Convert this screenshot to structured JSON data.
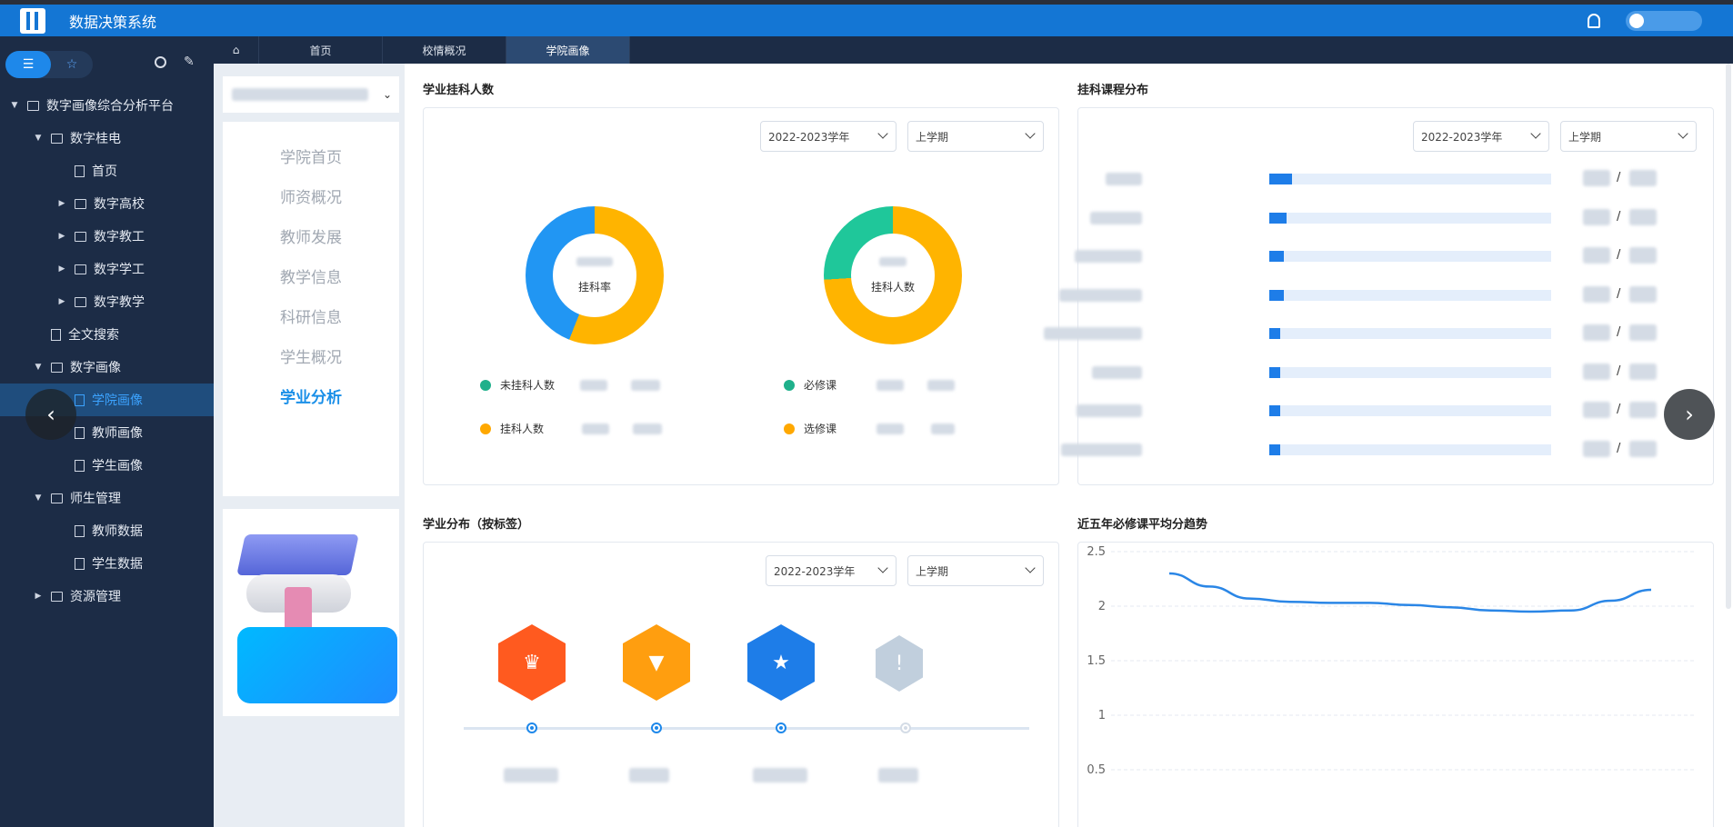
{
  "app": {
    "title": "数据决策系统"
  },
  "sidebar": {
    "items": [
      {
        "label": "数字画像综合分析平台",
        "level": 0,
        "arrow": "▼",
        "type": "folder"
      },
      {
        "label": "数字桂电",
        "level": 1,
        "arrow": "▼",
        "type": "folder"
      },
      {
        "label": "首页",
        "level": 2,
        "arrow": "",
        "type": "doc"
      },
      {
        "label": "数字高校",
        "level": 2,
        "arrow": "▶",
        "type": "folder"
      },
      {
        "label": "数字教工",
        "level": 2,
        "arrow": "▶",
        "type": "folder"
      },
      {
        "label": "数字学工",
        "level": 2,
        "arrow": "▶",
        "type": "folder"
      },
      {
        "label": "数字教学",
        "level": 2,
        "arrow": "▶",
        "type": "folder"
      },
      {
        "label": "全文搜索",
        "level": 1,
        "arrow": "",
        "type": "doc"
      },
      {
        "label": "数字画像",
        "level": 1,
        "arrow": "▼",
        "type": "folder"
      },
      {
        "label": "学院画像",
        "level": 2,
        "arrow": "",
        "type": "doc",
        "active": true
      },
      {
        "label": "教师画像",
        "level": 2,
        "arrow": "",
        "type": "doc"
      },
      {
        "label": "学生画像",
        "level": 2,
        "arrow": "",
        "type": "doc"
      },
      {
        "label": "师生管理",
        "level": 1,
        "arrow": "▼",
        "type": "folder"
      },
      {
        "label": "教师数据",
        "level": 2,
        "arrow": "",
        "type": "doc"
      },
      {
        "label": "学生数据",
        "level": 2,
        "arrow": "",
        "type": "doc"
      },
      {
        "label": "资源管理",
        "level": 1,
        "arrow": "▶",
        "type": "folder"
      }
    ]
  },
  "tabs": [
    {
      "label": "首页"
    },
    {
      "label": "校情概况"
    },
    {
      "label": "学院画像",
      "active": true
    }
  ],
  "menu": [
    "学院首页",
    "师资概况",
    "教师发展",
    "教学信息",
    "科研信息",
    "学生概况",
    "学业分析"
  ],
  "panel1": {
    "title": "学业挂科人数",
    "year": "2022-2023学年",
    "term": "上学期",
    "donut1": {
      "label": "挂科率",
      "legend": [
        "未挂科人数",
        "挂科人数"
      ],
      "colors": [
        "#2196f3",
        "#ffb400"
      ],
      "share": 0.44
    },
    "donut2": {
      "label": "挂科人数",
      "legend": [
        "必修课",
        "选修课"
      ],
      "colors": [
        "#1fc79a",
        "#ffb400"
      ],
      "share": 0.26
    }
  },
  "panel2": {
    "title": "挂科课程分布",
    "year": "2022-2023学年",
    "term": "上学期",
    "bars": [
      0.08,
      0.06,
      0.05,
      0.05,
      0.04,
      0.04,
      0.04,
      0.04
    ],
    "sep": "/"
  },
  "panel3": {
    "title": "学业分布（按标签）",
    "year": "2022-2023学年",
    "term": "上学期",
    "badges": [
      {
        "icon": "trophy-icon",
        "color": "#ff5a1f",
        "glyph": "🏆"
      },
      {
        "icon": "medal-icon",
        "color": "#ff9e0f",
        "glyph": "▼"
      },
      {
        "icon": "star-medal-icon",
        "color": "#1e7de8",
        "glyph": "★"
      },
      {
        "icon": "shield-icon",
        "color": "#b9c7d6",
        "glyph": "!"
      }
    ]
  },
  "panel4": {
    "title": "近五年必修课平均分趋势",
    "yticks": [
      "2.5",
      "2",
      "1.5",
      "1",
      "0.5"
    ],
    "chart_data": {
      "type": "line",
      "ylim": [
        0.5,
        2.5
      ],
      "values": [
        2.3,
        2.18,
        2.07,
        2.04,
        2.03,
        2.03,
        2.01,
        1.99,
        1.96,
        1.95,
        1.96,
        2.05,
        2.15
      ]
    }
  },
  "colors": {
    "brand": "#1476d4",
    "accent": "#1e88ea"
  }
}
